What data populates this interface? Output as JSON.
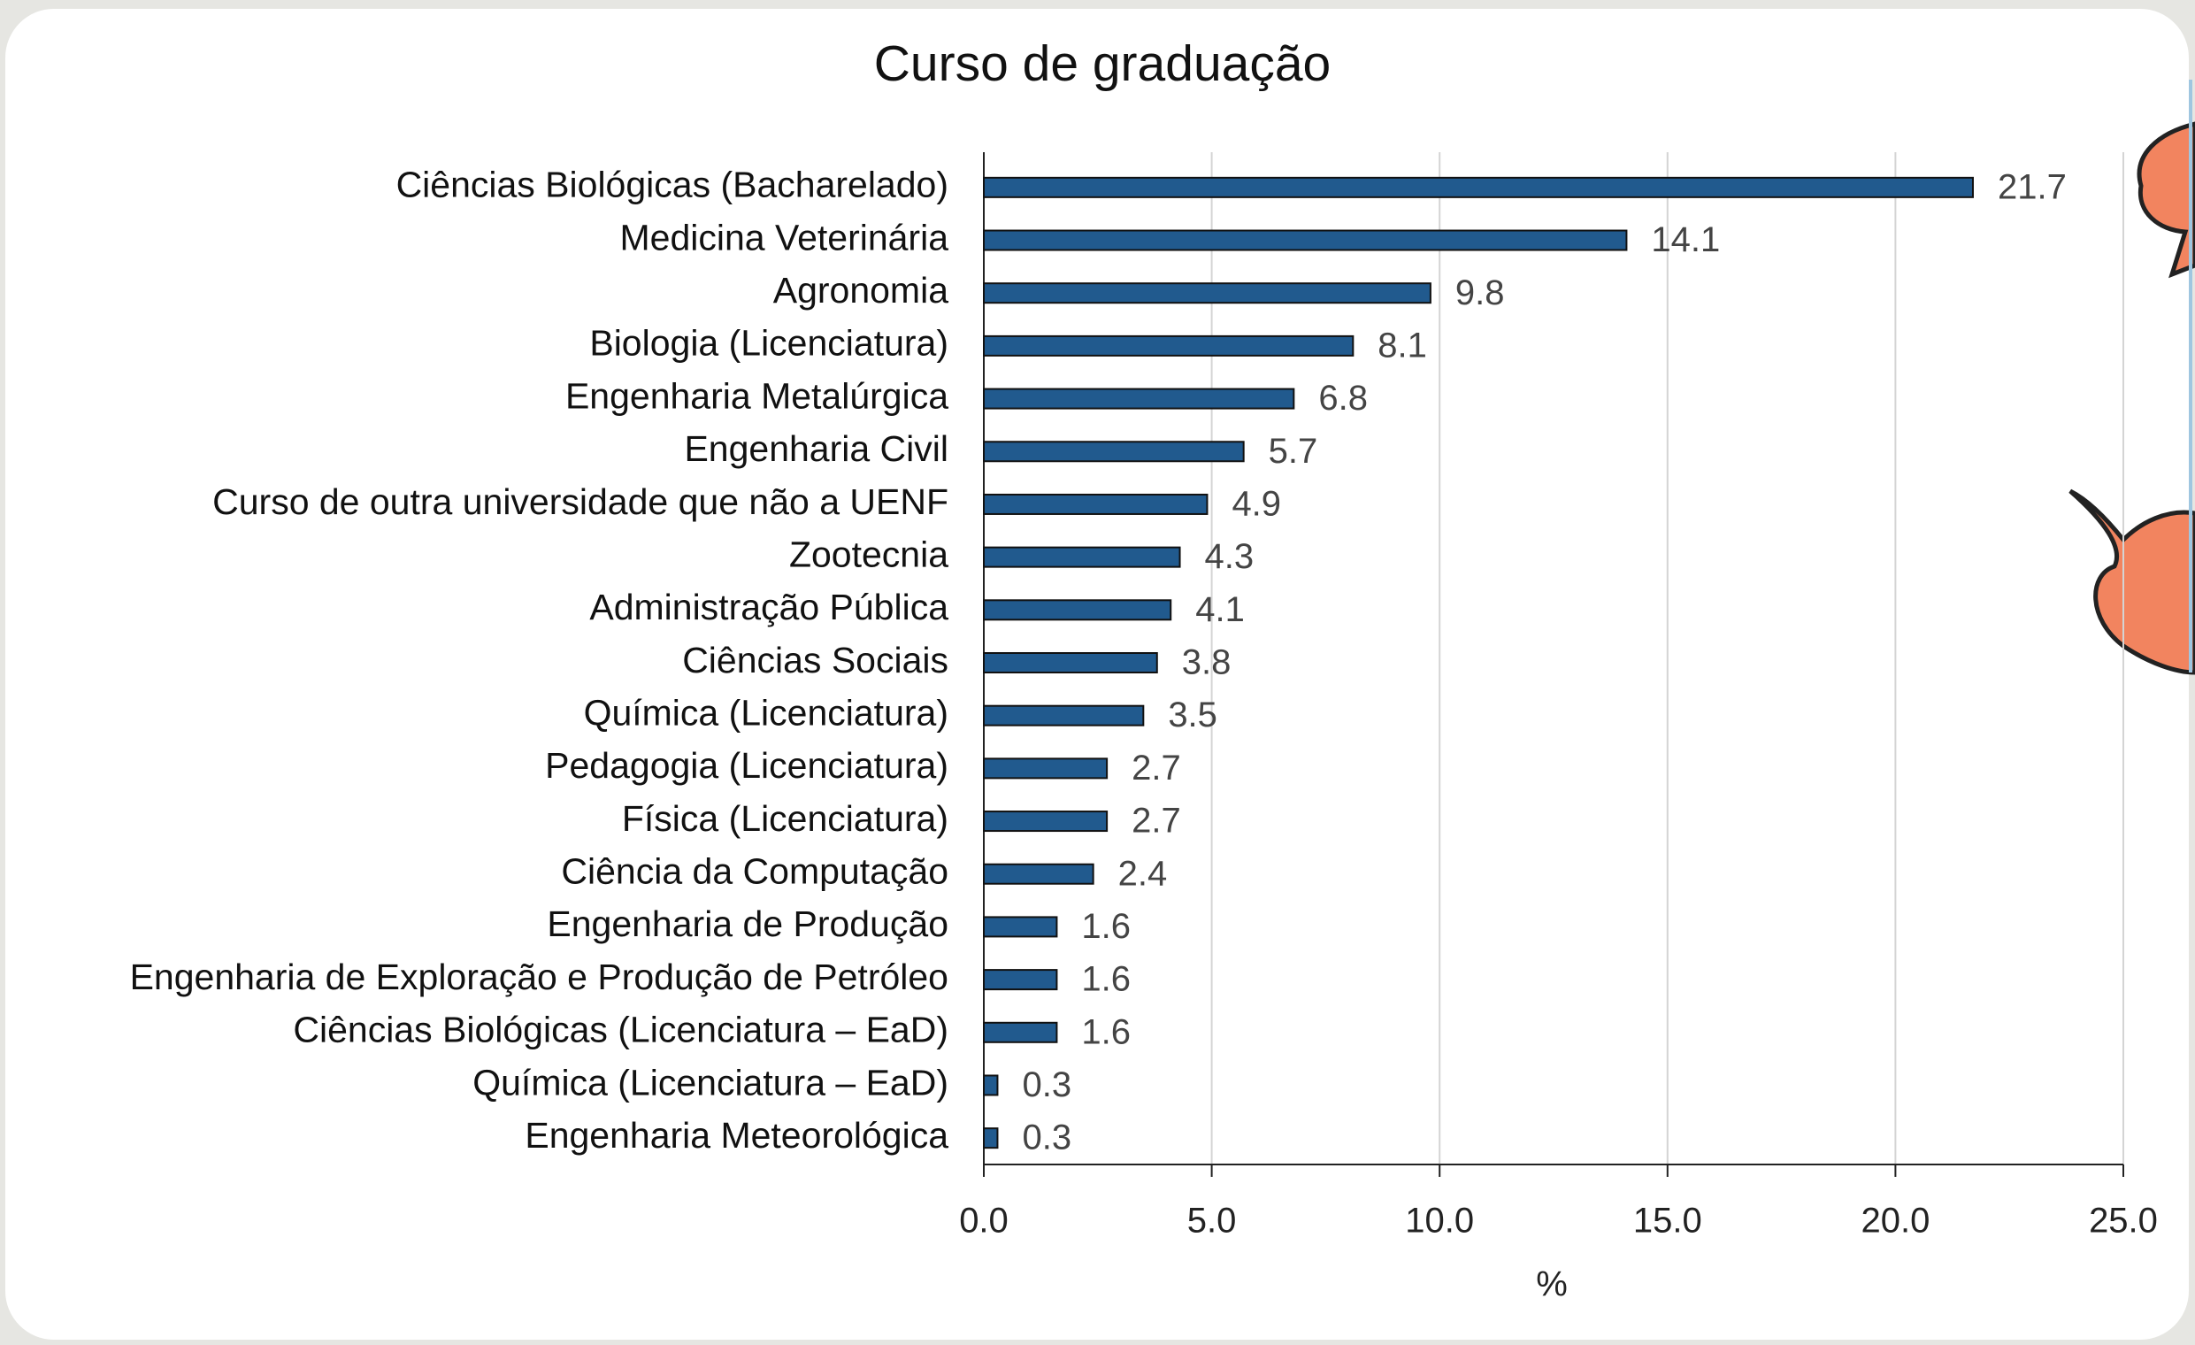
{
  "chart_data": {
    "type": "bar",
    "orientation": "horizontal",
    "title": "Curso de graduação",
    "xlabel": "%",
    "categories": [
      "Ciências Biológicas (Bacharelado)",
      "Medicina Veterinária",
      "Agronomia",
      "Biologia (Licenciatura)",
      "Engenharia Metalúrgica",
      "Engenharia Civil",
      "Curso de outra universidade que não a UENF",
      "Zootecnia",
      "Administração Pública",
      "Ciências Sociais",
      "Química (Licenciatura)",
      "Pedagogia (Licenciatura)",
      "Física (Licenciatura)",
      "Ciência da Computação",
      "Engenharia de Produção",
      "Engenharia de Exploração e Produção de Petróleo",
      "Ciências Biológicas (Licenciatura – EaD)",
      "Química (Licenciatura – EaD)",
      "Engenharia Meteorológica"
    ],
    "values": [
      21.7,
      14.1,
      9.8,
      8.1,
      6.8,
      5.7,
      4.9,
      4.3,
      4.1,
      3.8,
      3.5,
      2.7,
      2.7,
      2.4,
      1.6,
      1.6,
      1.6,
      0.3,
      0.3
    ],
    "color": "#215a8e",
    "xlim": [
      0,
      25
    ],
    "xticks": [
      {
        "value": 0,
        "label": "0.0"
      },
      {
        "value": 5,
        "label": "5.0"
      },
      {
        "value": 10,
        "label": "10.0"
      },
      {
        "value": 15,
        "label": "15.0"
      },
      {
        "value": 20,
        "label": "20.0"
      },
      {
        "value": 25,
        "label": "25.0"
      }
    ],
    "grid": true
  }
}
